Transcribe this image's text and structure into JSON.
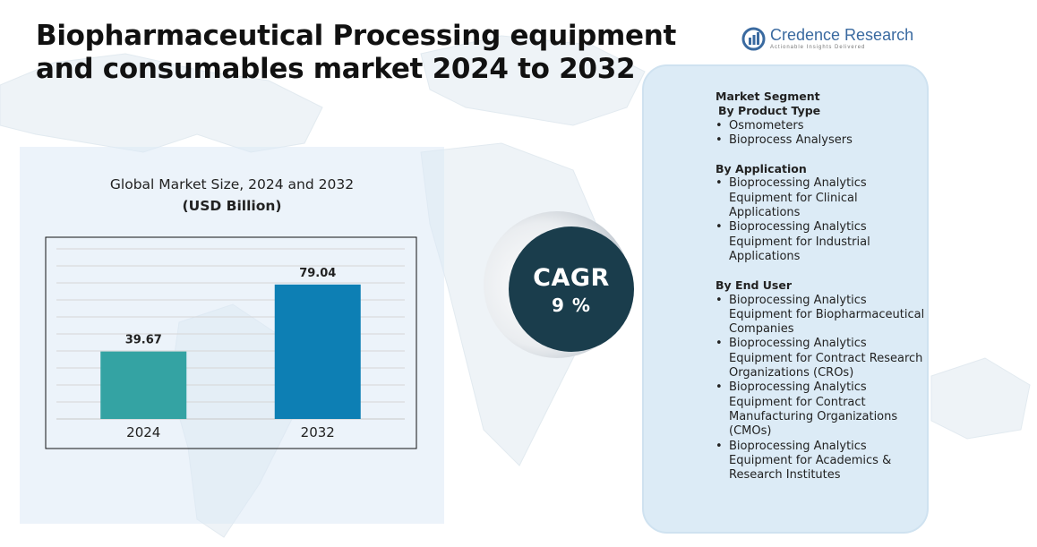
{
  "title": "Biopharmaceutical Processing equipment and consumables market  2024  to 2032",
  "logo": {
    "name": "Credence Research",
    "tagline": "Actionable Insights Delivered"
  },
  "chart_heading": {
    "title": "Global Market Size, 2024 and 2032",
    "unit": "(USD Billion)"
  },
  "chart_data": {
    "type": "bar",
    "categories": [
      "2024",
      "2032"
    ],
    "values": [
      39.67,
      79.04
    ],
    "data_labels": [
      "39.67",
      "79.04"
    ],
    "colors": [
      "#34a3a3",
      "#0d7fb4"
    ],
    "title": "Global Market Size, 2024 and 2032",
    "ylabel": "(USD Billion)",
    "xlabel": "",
    "ylim": [
      0,
      100
    ],
    "grid": true,
    "legend": "none"
  },
  "cagr": {
    "label": "CAGR",
    "value": "9 %",
    "color": "#1a3d4c"
  },
  "segments": {
    "heading": "Market Segment",
    "groups": [
      {
        "title": "By Product Type",
        "items": [
          "Osmometers",
          "Bioprocess Analysers"
        ]
      },
      {
        "title": "By Application",
        "items": [
          "Bioprocessing Analytics Equipment for Clinical Applications",
          "Bioprocessing Analytics Equipment for Industrial Applications"
        ]
      },
      {
        "title": "By End User",
        "items": [
          "Bioprocessing Analytics Equipment for Biopharmaceutical Companies",
          "Bioprocessing Analytics Equipment for Contract Research Organizations (CROs)",
          "Bioprocessing Analytics Equipment for Contract Manufacturing Organizations (CMOs)",
          "Bioprocessing Analytics Equipment for Academics & Research Institutes"
        ]
      }
    ]
  }
}
